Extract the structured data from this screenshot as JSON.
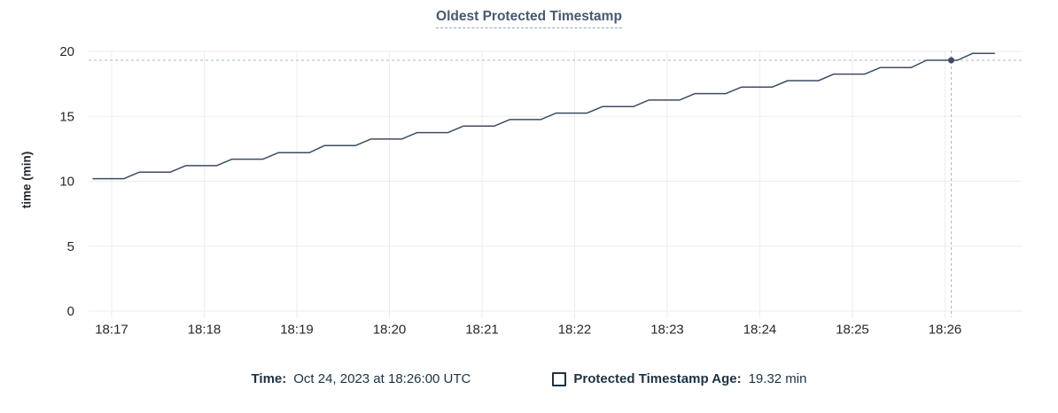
{
  "title": "Oldest Protected Timestamp",
  "y_axis_title": "time (min)",
  "tooltip_bar": {
    "time_label": "Time:",
    "time_value": "Oct 24, 2023 at 18:26:00 UTC",
    "series_label": "Protected Timestamp Age:",
    "series_value": "19.32 min"
  },
  "colors": {
    "title": "#475872",
    "title_underline": "#97a4b8",
    "line": "#3d4c62",
    "grid": "#ededed",
    "crosshair": "#a9bac2",
    "axis_text": "#24282d",
    "footer_text": "#1b3245"
  },
  "chart_data": {
    "type": "line",
    "title": "Oldest Protected Timestamp",
    "xlabel": "",
    "ylabel": "time (min)",
    "ylim": [
      0,
      20
    ],
    "y_ticks": [
      0,
      5,
      10,
      15,
      20
    ],
    "x_ticks": [
      "18:17",
      "18:18",
      "18:19",
      "18:20",
      "18:21",
      "18:22",
      "18:23",
      "18:24",
      "18:25",
      "18:26"
    ],
    "x_unit": "seconds after 18:17:00",
    "grid": true,
    "series_name": "Protected Timestamp Age",
    "points": [
      [
        -12,
        10.2
      ],
      [
        8,
        10.2
      ],
      [
        18,
        10.7
      ],
      [
        38,
        10.7
      ],
      [
        48,
        11.2
      ],
      [
        68,
        11.2
      ],
      [
        78,
        11.7
      ],
      [
        98,
        11.7
      ],
      [
        108,
        12.2
      ],
      [
        128,
        12.2
      ],
      [
        138,
        12.75
      ],
      [
        158,
        12.75
      ],
      [
        168,
        13.25
      ],
      [
        188,
        13.25
      ],
      [
        198,
        13.75
      ],
      [
        218,
        13.75
      ],
      [
        228,
        14.25
      ],
      [
        248,
        14.25
      ],
      [
        258,
        14.75
      ],
      [
        278,
        14.75
      ],
      [
        288,
        15.25
      ],
      [
        308,
        15.25
      ],
      [
        318,
        15.75
      ],
      [
        338,
        15.75
      ],
      [
        348,
        16.25
      ],
      [
        368,
        16.25
      ],
      [
        378,
        16.75
      ],
      [
        398,
        16.75
      ],
      [
        408,
        17.25
      ],
      [
        428,
        17.25
      ],
      [
        438,
        17.75
      ],
      [
        458,
        17.75
      ],
      [
        468,
        18.25
      ],
      [
        488,
        18.25
      ],
      [
        498,
        18.75
      ],
      [
        518,
        18.75
      ],
      [
        528,
        19.32
      ],
      [
        548,
        19.32
      ],
      [
        558,
        19.85
      ],
      [
        572,
        19.85
      ]
    ],
    "hover": {
      "t": 544,
      "value": 19.32,
      "time": "18:26:00",
      "date": "Oct 24, 2023",
      "display": "19.32 min"
    }
  }
}
